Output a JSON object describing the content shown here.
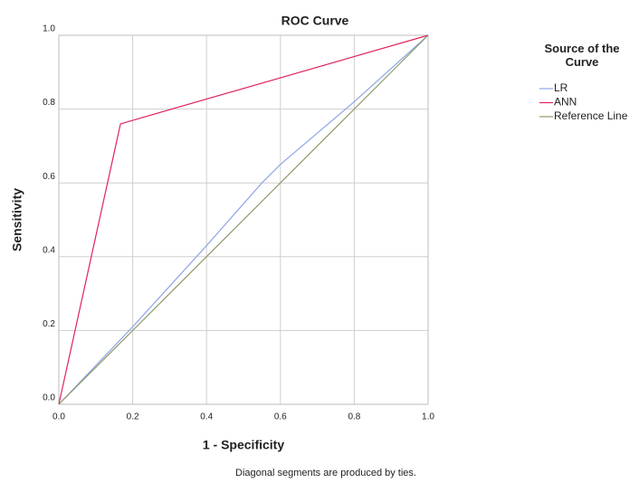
{
  "chart_data": {
    "type": "line",
    "title": "ROC Curve",
    "x_label": "1 - Specificity",
    "y_label": "Sensitivity",
    "footnote": "Diagonal segments are produced by ties.",
    "legend_title": "Source of the Curve",
    "legend": "right",
    "grid": true,
    "xlim": [
      0,
      1
    ],
    "ylim": [
      0,
      1
    ],
    "xticks": [
      {
        "value": 0,
        "label": "0.0"
      },
      {
        "value": 0.2,
        "label": "0.2"
      },
      {
        "value": 0.4,
        "label": "0.4"
      },
      {
        "value": 0.6,
        "label": "0.6"
      },
      {
        "value": 0.8,
        "label": "0.8"
      },
      {
        "value": 1,
        "label": "1.0"
      }
    ],
    "yticks": [
      {
        "value": 0,
        "label": "0.0"
      },
      {
        "value": 0.2,
        "label": "0.2"
      },
      {
        "value": 0.4,
        "label": "0.4"
      },
      {
        "value": 0.6,
        "label": "0.6"
      },
      {
        "value": 0.8,
        "label": "0.8"
      },
      {
        "value": 1,
        "label": "1.0"
      }
    ],
    "series": [
      {
        "name": "LR",
        "color": "#8fa6e6",
        "x": [
          0,
          0.2,
          0.4,
          0.55,
          0.6,
          0.8,
          1
        ],
        "values": [
          0,
          0.21,
          0.43,
          0.6,
          0.65,
          0.82,
          1
        ]
      },
      {
        "name": "ANN",
        "color": "#e0245a",
        "x": [
          0,
          0.167,
          1
        ],
        "values": [
          0,
          0.76,
          1
        ]
      },
      {
        "name": "Reference Line",
        "color": "#8f9a6a",
        "x": [
          0,
          1
        ],
        "values": [
          0,
          1
        ]
      }
    ]
  }
}
